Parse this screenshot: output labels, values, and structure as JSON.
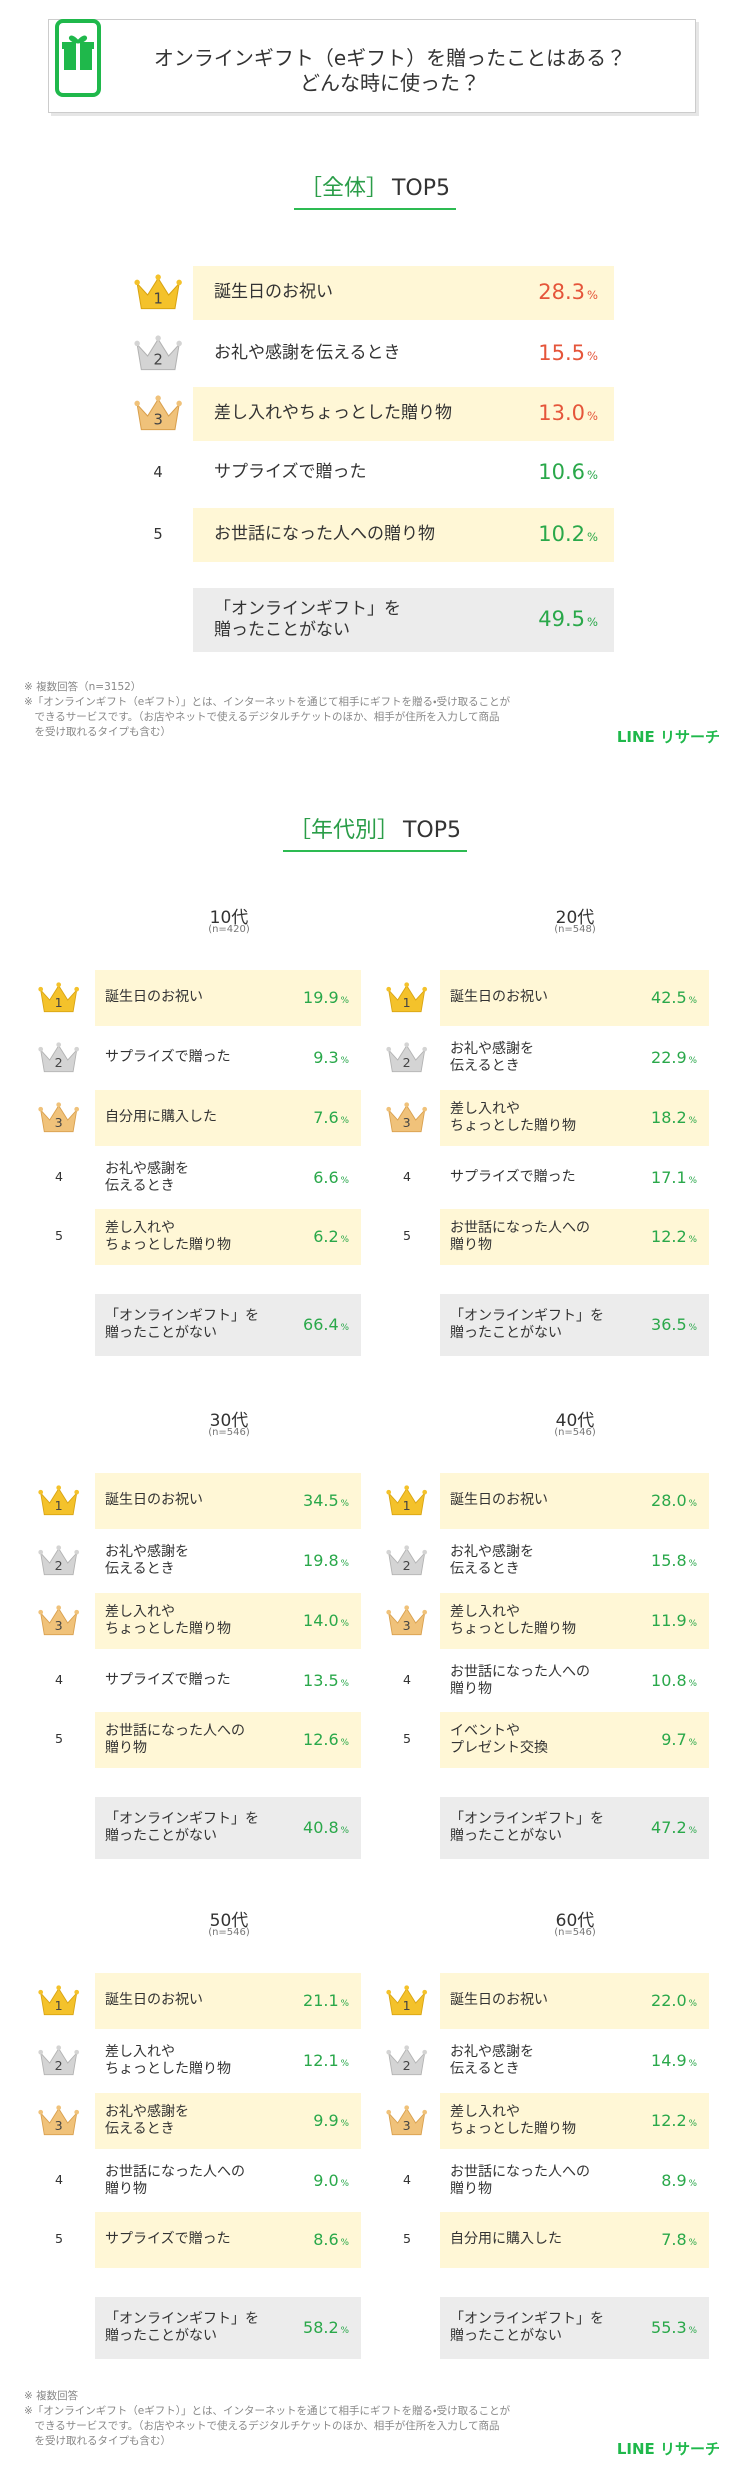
{
  "header": {
    "title": "オンラインギフト（eギフト）を贈ったことはある？\nどんな時に使った？"
  },
  "unit": "%",
  "never_label": "「オンラインギフト」を\n贈ったことがない",
  "overall": {
    "heading": {
      "tag": "［全体］",
      "text": "TOP5"
    },
    "items": [
      {
        "rank": 1,
        "label": "誕生日のお祝い",
        "value": "28.3"
      },
      {
        "rank": 2,
        "label": "お礼や感謝を伝えるとき",
        "value": "15.5"
      },
      {
        "rank": 3,
        "label": "差し入れやちょっとした贈り物",
        "value": "13.0"
      },
      {
        "rank": 4,
        "label": "サプライズで贈った",
        "value": "10.6"
      },
      {
        "rank": 5,
        "label": "お世話になった人への贈り物",
        "value": "10.2"
      }
    ],
    "never_value": "49.5"
  },
  "notes": [
    "※ 複数回答（n=3152）",
    "※「オンラインギフト（eギフト）」とは、インターネットを通じて相手にギフトを贈る・受け取ることが\n　できるサービスです。（お店やネットで使えるデジタルチケットのほか、相手が住所を入力して商品\n　を受け取れるタイプも含む）"
  ],
  "brand": "LINE リサーチ",
  "by_age": {
    "heading": {
      "tag": "［年代別］",
      "text": "TOP5"
    },
    "groups": [
      {
        "age": "10代",
        "n": "(n=420)",
        "items": [
          {
            "rank": 1,
            "label": "誕生日のお祝い",
            "value": "19.9"
          },
          {
            "rank": 2,
            "label": "サプライズで贈った",
            "value": "9.3"
          },
          {
            "rank": 3,
            "label": "自分用に購入した",
            "value": "7.6"
          },
          {
            "rank": 4,
            "label": "お礼や感謝を\n伝えるとき",
            "value": "6.6"
          },
          {
            "rank": 5,
            "label": "差し入れや\nちょっとした贈り物",
            "value": "6.2"
          }
        ],
        "never_value": "66.4"
      },
      {
        "age": "20代",
        "n": "(n=548)",
        "items": [
          {
            "rank": 1,
            "label": "誕生日のお祝い",
            "value": "42.5"
          },
          {
            "rank": 2,
            "label": "お礼や感謝を\n伝えるとき",
            "value": "22.9"
          },
          {
            "rank": 3,
            "label": "差し入れや\nちょっとした贈り物",
            "value": "18.2"
          },
          {
            "rank": 4,
            "label": "サプライズで贈った",
            "value": "17.1"
          },
          {
            "rank": 5,
            "label": "お世話になった人への\n贈り物",
            "value": "12.2"
          }
        ],
        "never_value": "36.5"
      },
      {
        "age": "30代",
        "n": "(n=546)",
        "items": [
          {
            "rank": 1,
            "label": "誕生日のお祝い",
            "value": "34.5"
          },
          {
            "rank": 2,
            "label": "お礼や感謝を\n伝えるとき",
            "value": "19.8"
          },
          {
            "rank": 3,
            "label": "差し入れや\nちょっとした贈り物",
            "value": "14.0"
          },
          {
            "rank": 4,
            "label": "サプライズで贈った",
            "value": "13.5"
          },
          {
            "rank": 5,
            "label": "お世話になった人への\n贈り物",
            "value": "12.6"
          }
        ],
        "never_value": "40.8"
      },
      {
        "age": "40代",
        "n": "(n=546)",
        "items": [
          {
            "rank": 1,
            "label": "誕生日のお祝い",
            "value": "28.0"
          },
          {
            "rank": 2,
            "label": "お礼や感謝を\n伝えるとき",
            "value": "15.8"
          },
          {
            "rank": 3,
            "label": "差し入れや\nちょっとした贈り物",
            "value": "11.9"
          },
          {
            "rank": 4,
            "label": "お世話になった人への\n贈り物",
            "value": "10.8"
          },
          {
            "rank": 5,
            "label": "イベントや\nプレゼント交換",
            "value": "9.7"
          }
        ],
        "never_value": "47.2"
      },
      {
        "age": "50代",
        "n": "(n=546)",
        "items": [
          {
            "rank": 1,
            "label": "誕生日のお祝い",
            "value": "21.1"
          },
          {
            "rank": 2,
            "label": "差し入れや\nちょっとした贈り物",
            "value": "12.1"
          },
          {
            "rank": 3,
            "label": "お礼や感謝を\n伝えるとき",
            "value": "9.9"
          },
          {
            "rank": 4,
            "label": "お世話になった人への\n贈り物",
            "value": "9.0"
          },
          {
            "rank": 5,
            "label": "サプライズで贈った",
            "value": "8.6"
          }
        ],
        "never_value": "58.2"
      },
      {
        "age": "60代",
        "n": "(n=546)",
        "items": [
          {
            "rank": 1,
            "label": "誕生日のお祝い",
            "value": "22.0"
          },
          {
            "rank": 2,
            "label": "お礼や感謝を\n伝えるとき",
            "value": "14.9"
          },
          {
            "rank": 3,
            "label": "差し入れや\nちょっとした贈り物",
            "value": "12.2"
          },
          {
            "rank": 4,
            "label": "お世話になった人への\n贈り物",
            "value": "8.9"
          },
          {
            "rank": 5,
            "label": "自分用に購入した",
            "value": "7.8"
          }
        ],
        "never_value": "55.3"
      }
    ],
    "notes": [
      "※ 複数回答"
    ]
  }
}
